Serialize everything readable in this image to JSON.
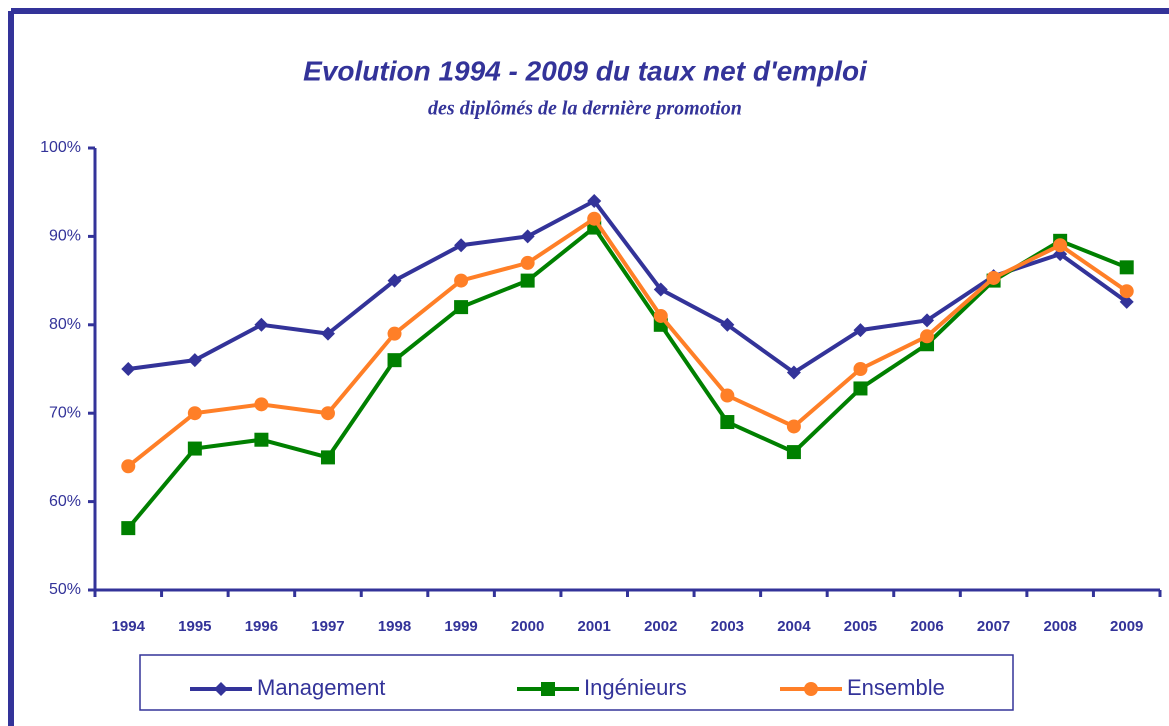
{
  "chart_data": {
    "type": "line",
    "title": "Evolution 1994 - 2009 du taux net d'emploi",
    "subtitle": "des diplômés de la dernière promotion",
    "categories": [
      "1994",
      "1995",
      "1996",
      "1997",
      "1998",
      "1999",
      "2000",
      "2001",
      "2002",
      "2003",
      "2004",
      "2005",
      "2006",
      "2007",
      "2008",
      "2009"
    ],
    "series": [
      {
        "name": "Management",
        "color": "#333399",
        "marker": "diamond",
        "values": [
          75,
          76,
          80,
          79,
          85,
          89,
          90,
          94,
          84,
          80,
          74.6,
          79.4,
          80.5,
          85.5,
          88,
          82.6
        ]
      },
      {
        "name": "Ingénieurs",
        "color": "#008000",
        "marker": "square",
        "values": [
          57,
          66,
          67,
          65,
          76,
          82,
          85,
          91,
          80,
          69,
          65.6,
          72.8,
          77.8,
          85,
          89.5,
          86.5
        ]
      },
      {
        "name": "Ensemble",
        "color": "#ff7f27",
        "marker": "circle",
        "values": [
          64,
          70,
          71,
          70,
          79,
          85,
          87,
          92,
          81,
          72,
          68.5,
          75,
          78.7,
          85.3,
          89,
          83.8
        ]
      }
    ],
    "ylim": [
      50,
      100
    ],
    "yticks": [
      {
        "value": 50,
        "label": "50%"
      },
      {
        "value": 60,
        "label": "60%"
      },
      {
        "value": 70,
        "label": "70%"
      },
      {
        "value": 80,
        "label": "80%"
      },
      {
        "value": 90,
        "label": "90%"
      },
      {
        "value": 100,
        "label": "100%"
      }
    ],
    "legend": "bottom"
  }
}
